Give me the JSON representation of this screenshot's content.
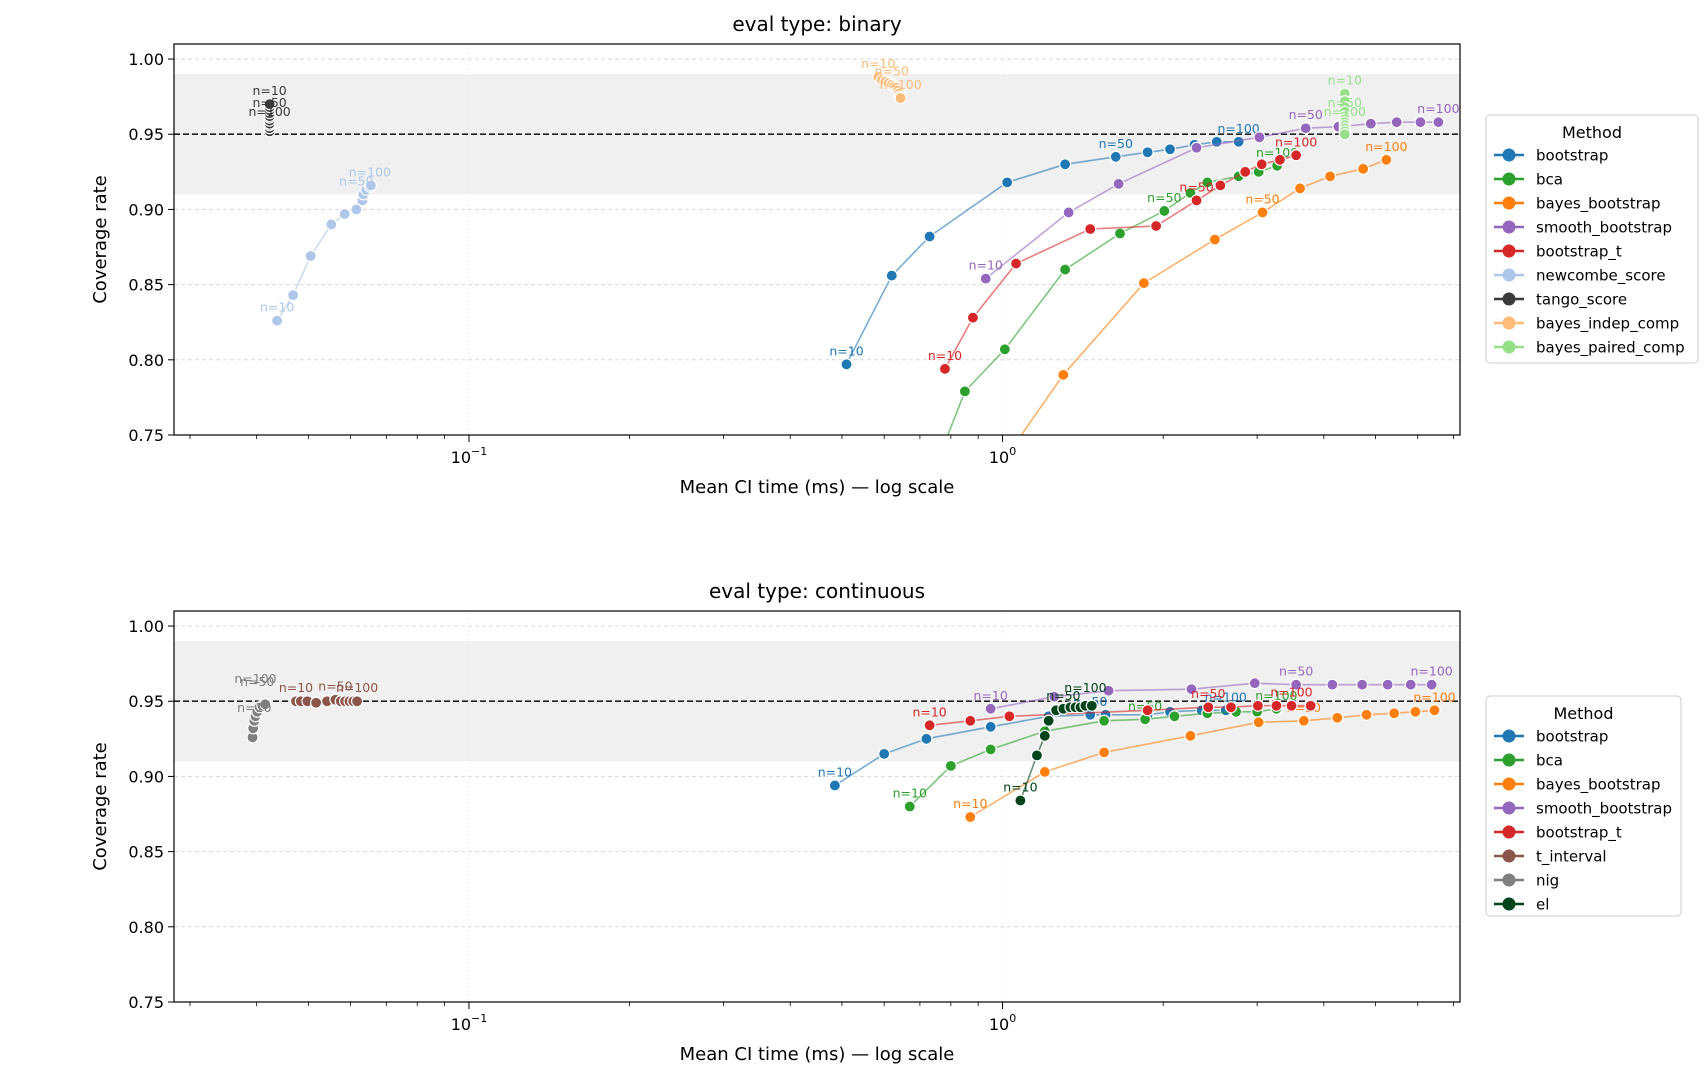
{
  "chart_data": [
    {
      "type": "line",
      "title": "eval type: binary",
      "xlabel": "Mean CI time (ms) — log scale",
      "ylabel": "Coverage rate",
      "xscale": "log",
      "xlim": [
        0.028,
        7.2
      ],
      "ylim": [
        0.75,
        1.01
      ],
      "yticks": [
        "0.75",
        "0.80",
        "0.85",
        "0.90",
        "0.95",
        "1.00"
      ],
      "xticks": [
        {
          "value": 0.1,
          "base": "10",
          "exp": "−1"
        },
        {
          "value": 1,
          "base": "10",
          "exp": "0"
        }
      ],
      "reference_line": 0.95,
      "band": [
        0.91,
        0.99
      ],
      "grid": true,
      "legend": {
        "title": "Method",
        "placement": "right"
      },
      "series": [
        {
          "name": "bootstrap",
          "color": "#1f77b4",
          "x": [
            0.51,
            0.62,
            0.73,
            1.02,
            1.31,
            1.63,
            1.87,
            2.06,
            2.29,
            2.52,
            2.77
          ],
          "y": [
            0.797,
            0.856,
            0.882,
            0.918,
            0.93,
            0.935,
            0.938,
            0.94,
            0.943,
            0.945,
            0.945
          ],
          "annotations": [
            {
              "text": "n=10",
              "x": 0.51,
              "y": 0.797
            },
            {
              "text": "n=50",
              "x": 1.63,
              "y": 0.935
            },
            {
              "text": "n=100",
              "x": 2.77,
              "y": 0.945
            }
          ]
        },
        {
          "name": "bca",
          "color": "#2ca02c",
          "x": [
            0.76,
            0.85,
            1.01,
            1.31,
            1.66,
            2.01,
            2.25,
            2.42,
            2.77,
            3.02,
            3.27
          ],
          "y": [
            0.735,
            0.779,
            0.807,
            0.86,
            0.884,
            0.899,
            0.911,
            0.918,
            0.922,
            0.925,
            0.929
          ],
          "annotations": [
            {
              "text": "n=50",
              "x": 2.01,
              "y": 0.899
            },
            {
              "text": "n=100",
              "x": 3.27,
              "y": 0.929
            }
          ]
        },
        {
          "name": "bayes_bootstrap",
          "color": "#ff7f0e",
          "x": [
            1.06,
            1.3,
            1.84,
            2.5,
            3.07,
            3.61,
            4.11,
            4.74,
            5.24
          ],
          "y": [
            0.745,
            0.79,
            0.851,
            0.88,
            0.898,
            0.914,
            0.922,
            0.927,
            0.933
          ],
          "annotations": [
            {
              "text": "n=50",
              "x": 3.07,
              "y": 0.898
            },
            {
              "text": "n=100",
              "x": 5.24,
              "y": 0.933
            }
          ]
        },
        {
          "name": "smooth_bootstrap",
          "color": "#9467bd",
          "x": [
            0.93,
            1.33,
            1.65,
            2.31,
            3.03,
            3.7,
            4.26,
            4.9,
            5.48,
            6.07,
            6.56
          ],
          "y": [
            0.854,
            0.898,
            0.917,
            0.941,
            0.948,
            0.954,
            0.955,
            0.957,
            0.958,
            0.958,
            0.958
          ],
          "annotations": [
            {
              "text": "n=10",
              "x": 0.93,
              "y": 0.854
            },
            {
              "text": "n=50",
              "x": 3.7,
              "y": 0.954
            },
            {
              "text": "n=100",
              "x": 6.56,
              "y": 0.958
            }
          ]
        },
        {
          "name": "bootstrap_t",
          "color": "#d62728",
          "x": [
            0.78,
            0.88,
            1.06,
            1.46,
            1.94,
            2.31,
            2.56,
            2.85,
            3.06,
            3.31,
            3.55
          ],
          "y": [
            0.794,
            0.828,
            0.864,
            0.887,
            0.889,
            0.906,
            0.916,
            0.925,
            0.93,
            0.933,
            0.936
          ],
          "annotations": [
            {
              "text": "n=10",
              "x": 0.78,
              "y": 0.794
            },
            {
              "text": "n=50",
              "x": 2.31,
              "y": 0.906
            },
            {
              "text": "n=100",
              "x": 3.55,
              "y": 0.936
            }
          ]
        },
        {
          "name": "newcombe_score",
          "color": "#aec7e8",
          "x": [
            0.0437,
            0.0468,
            0.0505,
            0.0552,
            0.0585,
            0.0615,
            0.0631,
            0.0634,
            0.0642,
            0.0652,
            0.0655
          ],
          "y": [
            0.826,
            0.843,
            0.869,
            0.89,
            0.897,
            0.9,
            0.906,
            0.91,
            0.913,
            0.915,
            0.916
          ],
          "annotations": [
            {
              "text": "n=10",
              "x": 0.0437,
              "y": 0.826
            },
            {
              "text": "n=50",
              "x": 0.0615,
              "y": 0.91
            },
            {
              "text": "n=100",
              "x": 0.0652,
              "y": 0.916
            }
          ]
        },
        {
          "name": "tango_score",
          "color": "#393939",
          "x": [
            0.0423,
            0.0423,
            0.0423,
            0.0423,
            0.0423,
            0.0423,
            0.0423,
            0.0423,
            0.0423,
            0.0423,
            0.0423
          ],
          "y": [
            0.952,
            0.954,
            0.956,
            0.957,
            0.959,
            0.961,
            0.962,
            0.964,
            0.966,
            0.968,
            0.97
          ],
          "annotations": [
            {
              "text": "n=10",
              "x": 0.0423,
              "y": 0.97
            },
            {
              "text": "n=50",
              "x": 0.0423,
              "y": 0.962
            },
            {
              "text": "n=100",
              "x": 0.0423,
              "y": 0.956
            }
          ]
        },
        {
          "name": "bayes_indep_comp",
          "color": "#ffbb78",
          "x": [
            0.585,
            0.594,
            0.603,
            0.612,
            0.62,
            0.627,
            0.633,
            0.637,
            0.64,
            0.642,
            0.644
          ],
          "y": [
            0.988,
            0.986,
            0.985,
            0.984,
            0.983,
            0.982,
            0.981,
            0.979,
            0.977,
            0.975,
            0.974
          ],
          "annotations": [
            {
              "text": "n=10",
              "x": 0.585,
              "y": 0.988
            },
            {
              "text": "n=50",
              "x": 0.62,
              "y": 0.983
            },
            {
              "text": "n=100",
              "x": 0.644,
              "y": 0.974
            }
          ]
        },
        {
          "name": "bayes_paired_comp",
          "color": "#98df8a",
          "x": [
            4.38,
            4.38,
            4.38,
            4.38,
            4.38,
            4.38,
            4.38,
            4.38,
            4.38,
            4.38,
            4.38
          ],
          "y": [
            0.977,
            0.972,
            0.968,
            0.965,
            0.962,
            0.96,
            0.958,
            0.956,
            0.954,
            0.952,
            0.95
          ],
          "annotations": [
            {
              "text": "n=10",
              "x": 4.38,
              "y": 0.977
            },
            {
              "text": "n=50",
              "x": 4.38,
              "y": 0.962
            },
            {
              "text": "n=100",
              "x": 4.38,
              "y": 0.956
            }
          ]
        }
      ]
    },
    {
      "type": "line",
      "title": "eval type: continuous",
      "xlabel": "Mean CI time (ms) — log scale",
      "ylabel": "Coverage rate",
      "xscale": "log",
      "xlim": [
        0.028,
        7.2
      ],
      "ylim": [
        0.75,
        1.01
      ],
      "yticks": [
        "0.75",
        "0.80",
        "0.85",
        "0.90",
        "0.95",
        "1.00"
      ],
      "xticks": [
        {
          "value": 0.1,
          "base": "10",
          "exp": "−1"
        },
        {
          "value": 1,
          "base": "10",
          "exp": "0"
        }
      ],
      "reference_line": 0.95,
      "band": [
        0.91,
        0.99
      ],
      "grid": true,
      "legend": {
        "title": "Method",
        "placement": "right"
      },
      "series": [
        {
          "name": "bootstrap",
          "color": "#1f77b4",
          "x": [
            0.485,
            0.6,
            0.72,
            0.95,
            1.22,
            1.46,
            1.56,
            1.87,
            2.06,
            2.36,
            2.62
          ],
          "y": [
            0.894,
            0.915,
            0.925,
            0.933,
            0.94,
            0.941,
            0.941,
            0.941,
            0.943,
            0.944,
            0.944
          ],
          "annotations": [
            {
              "text": "n=10",
              "x": 0.485,
              "y": 0.894
            },
            {
              "text": "n=50",
              "x": 1.46,
              "y": 0.941
            },
            {
              "text": "n=100",
              "x": 2.62,
              "y": 0.944
            }
          ]
        },
        {
          "name": "bca",
          "color": "#2ca02c",
          "x": [
            0.67,
            0.8,
            0.95,
            1.2,
            1.55,
            1.85,
            2.1,
            2.42,
            2.74,
            3.0,
            3.26
          ],
          "y": [
            0.88,
            0.907,
            0.918,
            0.93,
            0.937,
            0.938,
            0.94,
            0.942,
            0.943,
            0.943,
            0.945
          ],
          "annotations": [
            {
              "text": "n=10",
              "x": 0.67,
              "y": 0.88
            },
            {
              "text": "n=50",
              "x": 1.85,
              "y": 0.938
            },
            {
              "text": "n=100",
              "x": 3.26,
              "y": 0.945
            }
          ]
        },
        {
          "name": "bayes_bootstrap",
          "color": "#ff7f0e",
          "x": [
            0.87,
            1.2,
            1.55,
            2.25,
            3.02,
            3.67,
            4.24,
            4.81,
            5.42,
            5.94,
            6.45
          ],
          "y": [
            0.873,
            0.903,
            0.916,
            0.927,
            0.936,
            0.937,
            0.939,
            0.941,
            0.942,
            0.943,
            0.944
          ],
          "annotations": [
            {
              "text": "n=10",
              "x": 0.87,
              "y": 0.873
            },
            {
              "text": "n=50",
              "x": 3.67,
              "y": 0.937
            },
            {
              "text": "n=100",
              "x": 6.45,
              "y": 0.944
            }
          ]
        },
        {
          "name": "smooth_bootstrap",
          "color": "#9467bd",
          "x": [
            0.95,
            1.25,
            1.58,
            2.26,
            2.97,
            3.55,
            4.15,
            4.72,
            5.27,
            5.82,
            6.37
          ],
          "y": [
            0.945,
            0.953,
            0.957,
            0.958,
            0.962,
            0.961,
            0.961,
            0.961,
            0.961,
            0.961,
            0.961
          ],
          "annotations": [
            {
              "text": "n=10",
              "x": 0.95,
              "y": 0.945
            },
            {
              "text": "n=50",
              "x": 3.55,
              "y": 0.961
            },
            {
              "text": "n=100",
              "x": 6.37,
              "y": 0.961
            }
          ]
        },
        {
          "name": "bootstrap_t",
          "color": "#d62728",
          "x": [
            0.73,
            0.87,
            1.03,
            1.87,
            2.43,
            2.68,
            3.01,
            3.26,
            3.48,
            3.78
          ],
          "y": [
            0.934,
            0.937,
            0.94,
            0.944,
            0.946,
            0.946,
            0.947,
            0.947,
            0.947,
            0.947
          ],
          "annotations": [
            {
              "text": "n=10",
              "x": 0.73,
              "y": 0.934
            },
            {
              "text": "n=50",
              "x": 2.43,
              "y": 0.946
            },
            {
              "text": "n=100",
              "x": 3.48,
              "y": 0.947
            }
          ]
        },
        {
          "name": "t_interval",
          "color": "#8c564b",
          "x": [
            0.0474,
            0.0484,
            0.0498,
            0.0517,
            0.0542,
            0.0562,
            0.0575,
            0.0586,
            0.0597,
            0.0607,
            0.0617
          ],
          "y": [
            0.95,
            0.95,
            0.95,
            0.949,
            0.95,
            0.951,
            0.95,
            0.95,
            0.95,
            0.95,
            0.95
          ],
          "annotations": [
            {
              "text": "n=10",
              "x": 0.0474,
              "y": 0.95
            },
            {
              "text": "n=50",
              "x": 0.0562,
              "y": 0.951
            },
            {
              "text": "n=100",
              "x": 0.0617,
              "y": 0.95
            }
          ]
        },
        {
          "name": "nig",
          "color": "#7f7f7f",
          "x": [
            0.0393,
            0.0394,
            0.0396,
            0.0398,
            0.0401,
            0.0405,
            0.041,
            0.0415
          ],
          "y": [
            0.926,
            0.932,
            0.937,
            0.94,
            0.943,
            0.946,
            0.947,
            0.948
          ],
          "annotations": [
            {
              "text": "n=10",
              "x": 0.0396,
              "y": 0.937
            },
            {
              "text": "n=50",
              "x": 0.0401,
              "y": 0.954
            },
            {
              "text": "n=100",
              "x": 0.0398,
              "y": 0.956
            }
          ]
        },
        {
          "name": "el",
          "color": "#00441b",
          "x": [
            1.08,
            1.16,
            1.2,
            1.22,
            1.26,
            1.3,
            1.34,
            1.37,
            1.4,
            1.43,
            1.47
          ],
          "y": [
            0.884,
            0.914,
            0.927,
            0.937,
            0.944,
            0.945,
            0.946,
            0.946,
            0.946,
            0.947,
            0.947
          ],
          "annotations": [
            {
              "text": "n=10",
              "x": 1.08,
              "y": 0.884
            },
            {
              "text": "n=50",
              "x": 1.3,
              "y": 0.945
            },
            {
              "text": "n=100",
              "x": 1.43,
              "y": 0.95
            }
          ]
        }
      ]
    }
  ]
}
